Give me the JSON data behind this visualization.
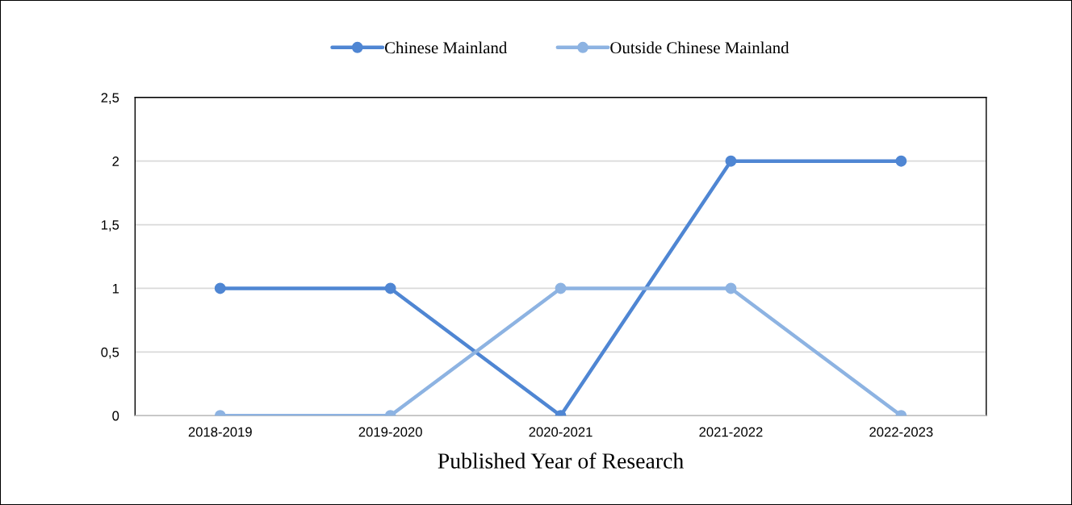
{
  "chart_data": {
    "type": "line",
    "xlabel": "Published Year of Research",
    "categories": [
      "2018-2019",
      "2019-2020",
      "2020-2021",
      "2021-2022",
      "2022-2023"
    ],
    "series": [
      {
        "name": "Chinese Mainland",
        "color": "#4f86d3",
        "values": [
          1,
          1,
          0,
          2,
          2
        ]
      },
      {
        "name": "Outside Chinese Mainland",
        "color": "#8db3e2",
        "values": [
          0,
          0,
          1,
          1,
          0
        ]
      }
    ],
    "ylim": [
      0,
      2.5
    ],
    "yticks": [
      0,
      {
        "value": 0.5,
        "label": "0,5"
      },
      1,
      {
        "value": 1.5,
        "label": "1,5"
      },
      2,
      {
        "value": 2.5,
        "label": "2,5"
      }
    ],
    "grid": "y",
    "legend": "top",
    "marker": "circle"
  }
}
